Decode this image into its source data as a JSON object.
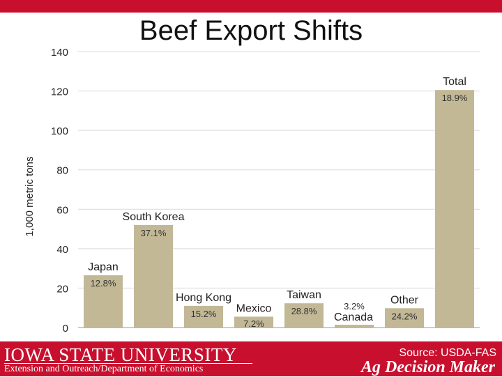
{
  "header": {
    "title": "Beef Export Shifts"
  },
  "footer": {
    "university": "IOWA STATE UNIVERSITY",
    "department": "Extension and Outreach/Department of Economics",
    "source": "Source: USDA-FAS",
    "brand": "Ag Decision Maker"
  },
  "colors": {
    "bar": "#c2b896",
    "brand_red": "#c8102e",
    "gridline": "#d9d9d9"
  },
  "chart_data": {
    "type": "bar",
    "title": "Beef Export Shifts",
    "ylabel": "1,000 metric tons",
    "xlabel": "",
    "ylim": [
      0,
      140
    ],
    "yticks": [
      0,
      20,
      40,
      60,
      80,
      100,
      120,
      140
    ],
    "grid": true,
    "categories": [
      "Japan",
      "South Korea",
      "Hong Kong",
      "Mexico",
      "Taiwan",
      "Canada",
      "Other",
      "Total"
    ],
    "values": [
      26.5,
      52,
      11,
      5.5,
      12.3,
      1.4,
      9.8,
      120.5
    ],
    "data_labels": [
      "12.8%",
      "37.1%",
      "15.2%",
      "7.2%",
      "28.8%",
      "3.2%",
      "24.2%",
      "18.9%"
    ]
  }
}
